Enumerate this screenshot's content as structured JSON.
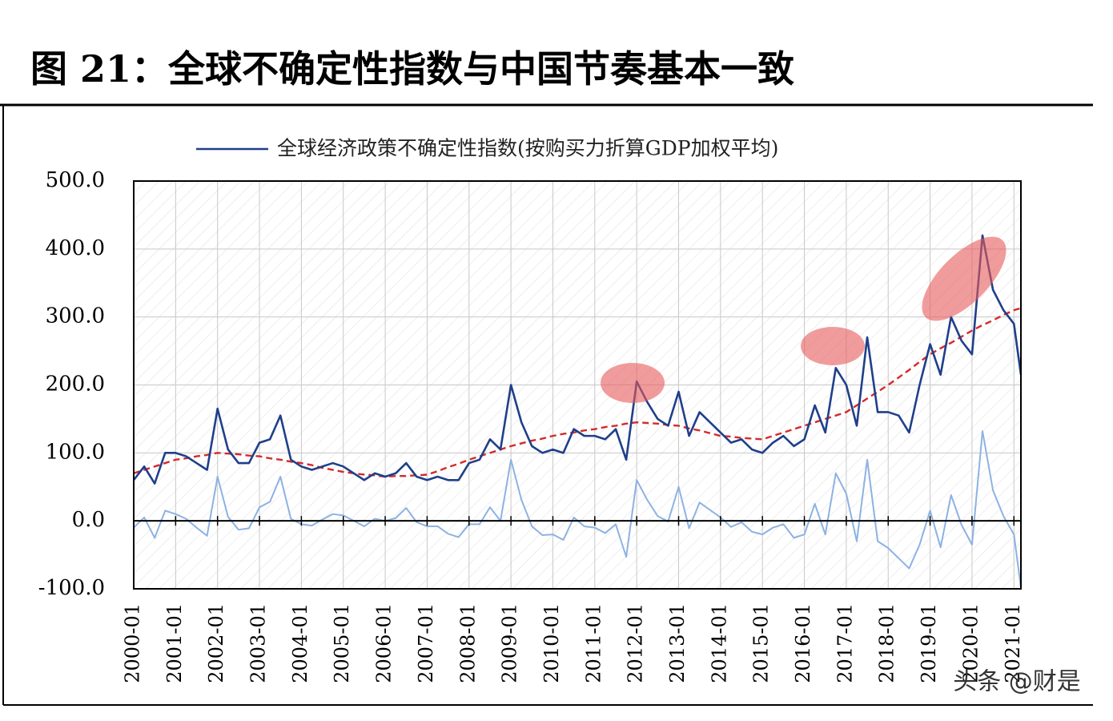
{
  "title": "图 21：全球不确定性指数与中国节奏基本一致",
  "watermark": "头条 @财是",
  "chart_data": {
    "type": "line",
    "x": [
      "2000-01",
      "2000-04",
      "2000-07",
      "2000-10",
      "2001-01",
      "2001-04",
      "2001-07",
      "2001-10",
      "2002-01",
      "2002-04",
      "2002-07",
      "2002-10",
      "2003-01",
      "2003-04",
      "2003-07",
      "2003-10",
      "2004-01",
      "2004-04",
      "2004-07",
      "2004-10",
      "2005-01",
      "2005-04",
      "2005-07",
      "2005-10",
      "2006-01",
      "2006-04",
      "2006-07",
      "2006-10",
      "2007-01",
      "2007-04",
      "2007-07",
      "2007-10",
      "2008-01",
      "2008-04",
      "2008-07",
      "2008-10",
      "2009-01",
      "2009-04",
      "2009-07",
      "2009-10",
      "2010-01",
      "2010-04",
      "2010-07",
      "2010-10",
      "2011-01",
      "2011-04",
      "2011-07",
      "2011-10",
      "2012-01",
      "2012-04",
      "2012-07",
      "2012-10",
      "2013-01",
      "2013-04",
      "2013-07",
      "2013-10",
      "2014-01",
      "2014-04",
      "2014-07",
      "2014-10",
      "2015-01",
      "2015-04",
      "2015-07",
      "2015-10",
      "2016-01",
      "2016-04",
      "2016-07",
      "2016-10",
      "2017-01",
      "2017-04",
      "2017-07",
      "2017-10",
      "2018-01",
      "2018-04",
      "2018-07",
      "2018-10",
      "2019-01",
      "2019-04",
      "2019-07",
      "2019-10",
      "2020-01",
      "2020-04",
      "2020-07",
      "2020-10",
      "2021-01",
      "2021-03"
    ],
    "series": [
      {
        "name": "全球经济政策不确定性指数(按购买力折算GDP加权平均)",
        "color": "#1f3f8a",
        "width": 2.6,
        "dash": false,
        "values": [
          60,
          80,
          55,
          100,
          100,
          95,
          85,
          75,
          165,
          105,
          85,
          85,
          115,
          120,
          155,
          90,
          80,
          75,
          80,
          85,
          80,
          70,
          60,
          70,
          65,
          70,
          85,
          65,
          60,
          65,
          60,
          60,
          85,
          90,
          120,
          105,
          200,
          145,
          110,
          100,
          105,
          100,
          135,
          125,
          125,
          120,
          135,
          90,
          205,
          175,
          150,
          140,
          190,
          125,
          160,
          145,
          130,
          115,
          120,
          105,
          100,
          115,
          125,
          110,
          120,
          170,
          130,
          225,
          200,
          140,
          270,
          160,
          160,
          155,
          130,
          200,
          260,
          215,
          300,
          265,
          245,
          420,
          340,
          310,
          290,
          215
        ]
      },
      {
        "color": "#d42a2a",
        "width": 2.4,
        "dash": true,
        "values": [
          70,
          75,
          80,
          85,
          90,
          92,
          95,
          97,
          100,
          99,
          98,
          96,
          95,
          92,
          90,
          87,
          85,
          82,
          78,
          75,
          72,
          70,
          68,
          67,
          65,
          66,
          66,
          67,
          68,
          73,
          79,
          84,
          90,
          95,
          100,
          105,
          110,
          114,
          118,
          121,
          125,
          128,
          130,
          133,
          135,
          138,
          140,
          143,
          145,
          144,
          143,
          141,
          140,
          136,
          133,
          129,
          125,
          124,
          122,
          121,
          120,
          125,
          130,
          135,
          140,
          145,
          150,
          155,
          160,
          170,
          180,
          190,
          200,
          211,
          222,
          234,
          245,
          254,
          262,
          271,
          280,
          288,
          295,
          303,
          310,
          313
        ]
      },
      {
        "color": "#8db2e2",
        "width": 2,
        "dash": false,
        "values": [
          -10,
          5,
          -25,
          15,
          10,
          3,
          -10,
          -22,
          65,
          6,
          -13,
          -11,
          20,
          28,
          65,
          3,
          -5,
          -7,
          2,
          10,
          8,
          0,
          -8,
          3,
          0,
          4,
          19,
          -2,
          -8,
          -8,
          -19,
          -24,
          -5,
          -5,
          20,
          0,
          90,
          31,
          -8,
          -21,
          -20,
          -28,
          5,
          -8,
          -10,
          -18,
          -5,
          -53,
          60,
          31,
          7,
          -1,
          50,
          -11,
          27,
          16,
          5,
          -9,
          -2,
          -16,
          -20,
          -10,
          -5,
          -25,
          -20,
          25,
          -20,
          70,
          40,
          -30,
          90,
          -30,
          -40,
          -55,
          -70,
          -35,
          15,
          -39,
          38,
          -6,
          -35,
          132,
          45,
          7,
          -20,
          -98
        ]
      }
    ],
    "xlim": [
      "2000-01",
      "2021-03"
    ],
    "xticks": [
      "2000-01",
      "2001-01",
      "2002-01",
      "2003-01",
      "2004-01",
      "2005-01",
      "2006-01",
      "2007-01",
      "2008-01",
      "2009-01",
      "2010-01",
      "2011-01",
      "2012-01",
      "2013-01",
      "2014-01",
      "2015-01",
      "2016-01",
      "2017-01",
      "2018-01",
      "2019-01",
      "2020-01",
      "2021-01"
    ],
    "ylim": [
      -100,
      500
    ],
    "yticks": [
      {
        "value": -100,
        "label": "-100.0"
      },
      {
        "value": 0,
        "label": "0.0"
      },
      {
        "value": 100,
        "label": "100.0"
      },
      {
        "value": 200,
        "label": "200.0"
      },
      {
        "value": 300,
        "label": "300.0"
      },
      {
        "value": 400,
        "label": "400.0"
      },
      {
        "value": 500,
        "label": "500.0"
      }
    ],
    "grid": true
  }
}
